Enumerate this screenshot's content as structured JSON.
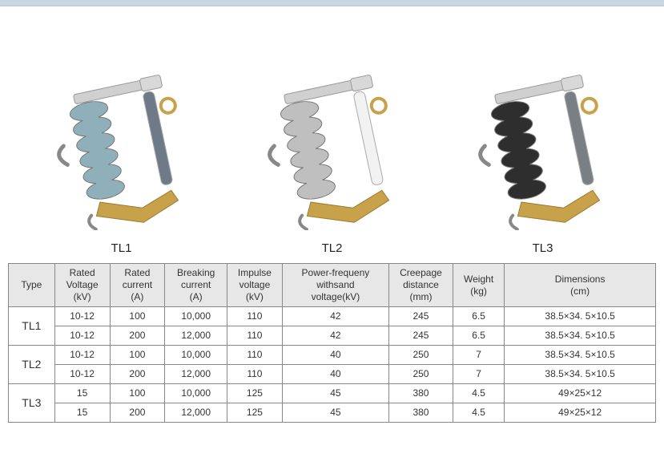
{
  "topbar_color": "#c9d6e4",
  "products": [
    {
      "key": "p1",
      "label": "TL1",
      "tint": "#9fb8c2",
      "insulator": "#8fb0ba",
      "tube": "#6f7a88"
    },
    {
      "key": "p2",
      "label": "TL2",
      "tint": "#c9c9c9",
      "insulator": "#bfbfbf",
      "tube": "#f2f2f2"
    },
    {
      "key": "p3",
      "label": "TL3",
      "tint": "#3a3a3a",
      "insulator": "#2e2e2e",
      "tube": "#7a7f86"
    }
  ],
  "table": {
    "headers": {
      "type": "Type",
      "rated_voltage": "Rated\nVoltage\n(kV)",
      "rated_current": "Rated\ncurrent\n(A)",
      "breaking_current": "Breaking\ncurrent\n(A)",
      "impulse_voltage": "Impulse\nvoltage\n(kV)",
      "pf_withstand": "Power-frequeny\nwithsand\nvoltage(kV)",
      "creepage": "Creepage\ndistance\n(mm)",
      "weight": "Weight\n(kg)",
      "dimensions": "Dimensions\n(cm)"
    },
    "groups": [
      {
        "type": "TL1",
        "rows": [
          {
            "rv": "10-12",
            "rc": "100",
            "bc": "10,000",
            "iv": "110",
            "pf": "42",
            "cd": "245",
            "w": "6.5",
            "dim": "38.5×34. 5×10.5"
          },
          {
            "rv": "10-12",
            "rc": "200",
            "bc": "12,000",
            "iv": "110",
            "pf": "42",
            "cd": "245",
            "w": "6.5",
            "dim": "38.5×34. 5×10.5"
          }
        ]
      },
      {
        "type": "TL2",
        "rows": [
          {
            "rv": "10-12",
            "rc": "100",
            "bc": "10,000",
            "iv": "110",
            "pf": "40",
            "cd": "250",
            "w": "7",
            "dim": "38.5×34. 5×10.5"
          },
          {
            "rv": "10-12",
            "rc": "200",
            "bc": "12,000",
            "iv": "110",
            "pf": "40",
            "cd": "250",
            "w": "7",
            "dim": "38.5×34. 5×10.5"
          }
        ]
      },
      {
        "type": "TL3",
        "rows": [
          {
            "rv": "15",
            "rc": "100",
            "bc": "10,000",
            "iv": "125",
            "pf": "45",
            "cd": "380",
            "w": "4.5",
            "dim": "49×25×12"
          },
          {
            "rv": "15",
            "rc": "200",
            "bc": "12,000",
            "iv": "125",
            "pf": "45",
            "cd": "380",
            "w": "4.5",
            "dim": "49×25×12"
          }
        ]
      }
    ]
  }
}
